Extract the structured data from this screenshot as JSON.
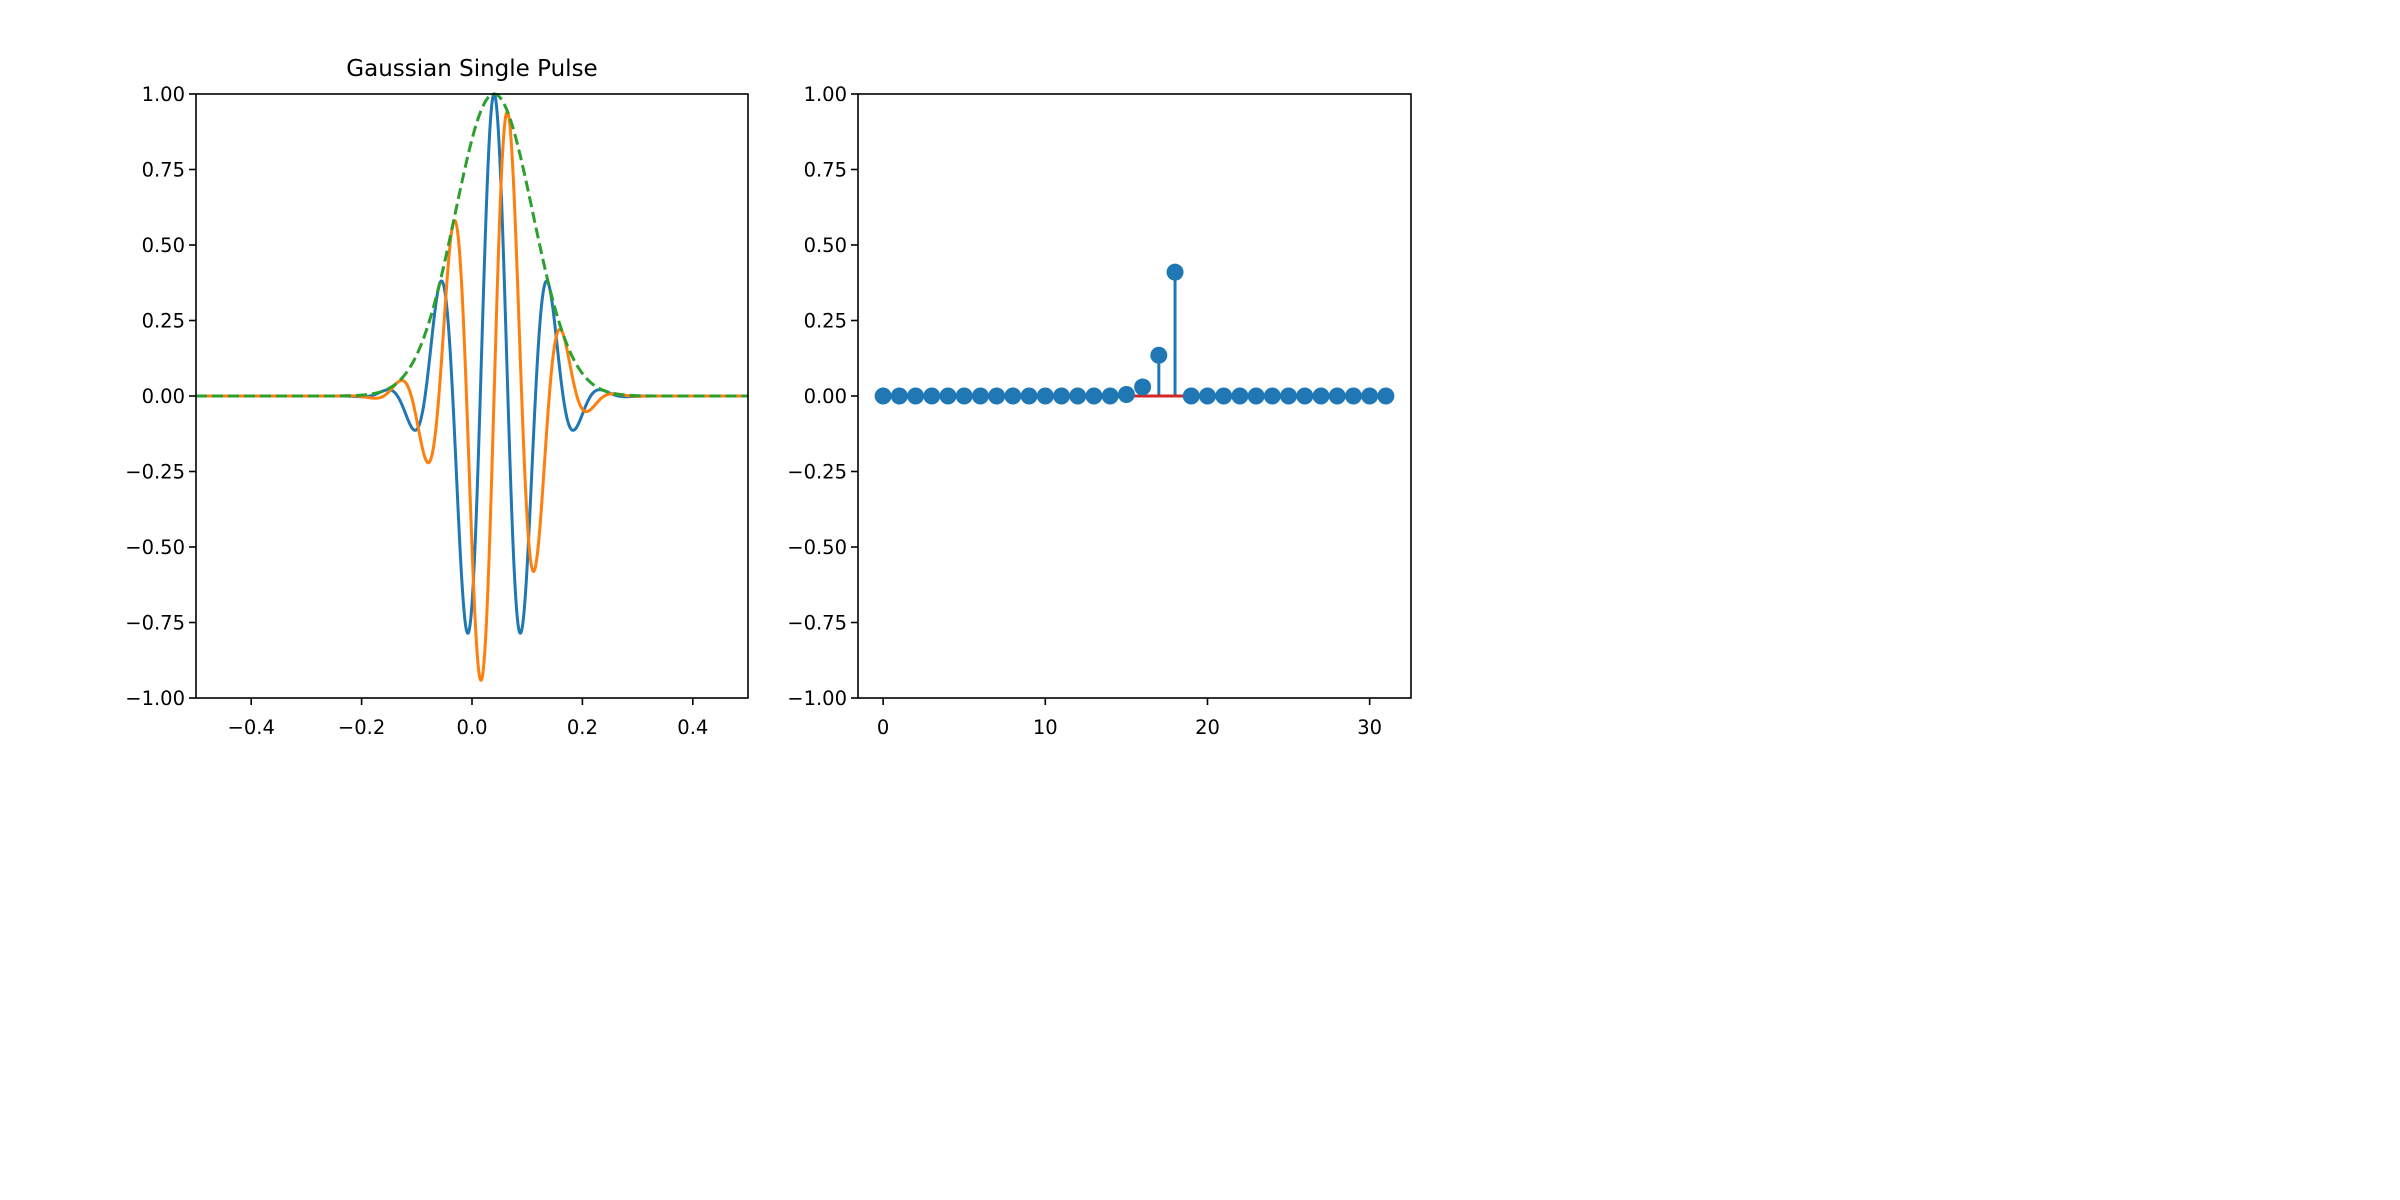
{
  "chart_data": [
    {
      "type": "line",
      "title": "Gaussian Single Pulse",
      "xlabel": "",
      "ylabel": "",
      "xlim": [
        -0.5,
        0.5
      ],
      "ylim": [
        -1.0,
        1.0
      ],
      "x_ticks": [
        -0.4,
        -0.2,
        0.0,
        0.2,
        0.4
      ],
      "x_tick_labels": [
        "−0.4",
        "−0.2",
        "0.0",
        "0.2",
        "0.4"
      ],
      "y_ticks": [
        1.0,
        0.75,
        0.5,
        0.25,
        0.0,
        -0.25,
        -0.5,
        -0.75,
        -1.0
      ],
      "y_tick_labels": [
        "1.00",
        "0.75",
        "0.50",
        "0.25",
        "0.00",
        "−0.25",
        "−0.50",
        "−0.75",
        "−1.00"
      ],
      "grid": false,
      "pulse": {
        "center": 0.04,
        "envelope_sigma": 0.0702,
        "carrier_freq": 10.0
      },
      "series": [
        {
          "component": "real",
          "color": "#1f77b4",
          "style": "solid"
        },
        {
          "component": "imag",
          "color": "#ff7f0e",
          "style": "solid"
        },
        {
          "component": "envelope",
          "color": "#2ca02c",
          "style": "dashed"
        }
      ]
    },
    {
      "type": "stem",
      "title": "",
      "xlabel": "",
      "ylabel": "",
      "xlim": [
        -1.55,
        32.55
      ],
      "ylim": [
        -1.0,
        1.0
      ],
      "x_ticks": [
        0,
        10,
        20,
        30
      ],
      "x_tick_labels": [
        "0",
        "10",
        "20",
        "30"
      ],
      "y_ticks": [
        1.0,
        0.75,
        0.5,
        0.25,
        0.0,
        -0.25,
        -0.5,
        -0.75,
        -1.0
      ],
      "y_tick_labels": [
        "1.00",
        "0.75",
        "0.50",
        "0.25",
        "0.00",
        "−0.25",
        "−0.50",
        "−0.75",
        "−1.00"
      ],
      "grid": false,
      "x": [
        0,
        1,
        2,
        3,
        4,
        5,
        6,
        7,
        8,
        9,
        10,
        11,
        12,
        13,
        14,
        15,
        16,
        17,
        18,
        19,
        20,
        21,
        22,
        23,
        24,
        25,
        26,
        27,
        28,
        29,
        30,
        31
      ],
      "values": [
        0,
        0,
        0,
        0,
        0,
        0,
        0,
        0,
        0,
        0,
        0,
        0,
        0,
        0,
        0,
        0.005,
        0.03,
        0.135,
        0.41,
        0,
        0,
        0,
        0,
        0,
        0,
        0,
        0,
        0,
        0,
        0,
        0,
        0
      ],
      "marker_color": "#1f77b4",
      "baseline_color": "#d62728"
    }
  ]
}
